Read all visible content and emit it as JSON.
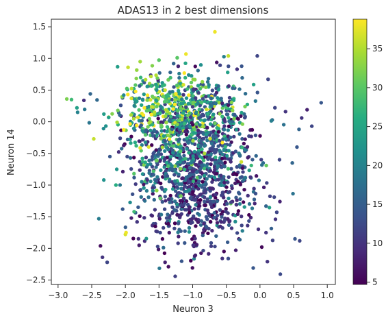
{
  "chart_data": {
    "type": "scatter",
    "title": "ADAS13 in 2 best dimensions",
    "xlabel": "Neuron 3",
    "ylabel": "Neuron 14",
    "xlim": [
      -3.1,
      1.12
    ],
    "ylim": [
      -2.57,
      1.62
    ],
    "xticks": [
      -3.0,
      -2.5,
      -2.0,
      -1.5,
      -1.0,
      -0.5,
      0.0,
      0.5,
      1.0
    ],
    "xtick_labels": [
      "−3.0",
      "−2.5",
      "−2.0",
      "−1.5",
      "−1.0",
      "−0.5",
      "0.0",
      "0.5",
      "1.0"
    ],
    "yticks": [
      1.5,
      1.0,
      0.5,
      0.0,
      -0.5,
      -1.0,
      -1.5,
      -2.0,
      -2.5
    ],
    "ytick_labels": [
      "1.5",
      "1.0",
      "0.5",
      "0.0",
      "−0.5",
      "−1.0",
      "−1.5",
      "−2.0",
      "−2.5"
    ],
    "grid": false,
    "colormap": "viridis",
    "color_range": [
      4.7,
      38.8
    ],
    "colorbar_ticks": [
      35,
      30,
      25,
      20,
      15,
      10,
      5
    ],
    "colorbar_tick_labels": [
      "35",
      "30",
      "25",
      "20",
      "15",
      "10",
      "5"
    ],
    "point_count_estimate": 1700,
    "points": [
      [
        -2.87,
        0.36,
        32
      ],
      [
        -2.8,
        0.35,
        28
      ],
      [
        -2.72,
        0.22,
        24
      ],
      [
        -2.71,
        0.15,
        20
      ],
      [
        -2.52,
        0.44,
        16
      ],
      [
        -2.47,
        -0.27,
        36
      ],
      [
        -2.37,
        -1.96,
        6
      ],
      [
        -2.34,
        -2.14,
        10
      ],
      [
        -2.27,
        -2.22,
        12
      ],
      [
        -2.23,
        -0.55,
        14
      ],
      [
        -2.0,
        -1.78,
        37
      ],
      [
        -1.99,
        -1.75,
        38
      ],
      [
        -1.91,
        0.37,
        37
      ],
      [
        -1.85,
        0.58,
        30
      ],
      [
        -1.96,
        0.86,
        36
      ],
      [
        -1.78,
        0.95,
        34
      ],
      [
        -1.1,
        1.07,
        38
      ],
      [
        -1.23,
        1.01,
        30
      ],
      [
        -0.67,
        1.42,
        38
      ],
      [
        -0.47,
        1.04,
        36
      ],
      [
        -0.04,
        1.04,
        12
      ],
      [
        -0.34,
        0.83,
        10
      ],
      [
        0.12,
        0.67,
        12
      ],
      [
        0.38,
        0.16,
        10
      ],
      [
        0.58,
        -0.12,
        16
      ],
      [
        0.62,
        0.06,
        10
      ],
      [
        0.7,
        0.19,
        8
      ],
      [
        0.91,
        0.3,
        14
      ],
      [
        0.77,
        -0.07,
        12
      ],
      [
        0.55,
        -0.4,
        14
      ],
      [
        0.48,
        -0.65,
        16
      ],
      [
        0.29,
        -0.6,
        12
      ],
      [
        0.52,
        -1.85,
        14
      ],
      [
        0.59,
        -1.88,
        12
      ],
      [
        0.11,
        -2.21,
        10
      ],
      [
        -0.1,
        -2.31,
        14
      ],
      [
        -0.36,
        -2.03,
        8
      ],
      [
        -0.56,
        -2.16,
        10
      ],
      [
        -1.36,
        -2.29,
        6
      ],
      [
        -1.41,
        -2.22,
        8
      ],
      [
        -1.52,
        -1.97,
        12
      ],
      [
        -0.96,
        -2.11,
        8
      ],
      [
        0.25,
        -1.43,
        12
      ],
      [
        0.23,
        -1.54,
        10
      ],
      [
        -2.04,
        -1.38,
        14
      ],
      [
        -1.87,
        -1.42,
        28
      ],
      [
        -2.14,
        -1.0,
        26
      ],
      [
        -2.32,
        -0.92,
        22
      ]
    ],
    "clusters": [
      {
        "center": [
          -1.0,
          -0.75
        ],
        "spread": [
          0.42,
          0.52
        ],
        "n": 700,
        "color_mean": 12,
        "color_sd": 5
      },
      {
        "center": [
          -1.25,
          -0.2
        ],
        "spread": [
          0.45,
          0.45
        ],
        "n": 420,
        "color_mean": 20,
        "color_sd": 7
      },
      {
        "center": [
          -1.35,
          0.25
        ],
        "spread": [
          0.38,
          0.28
        ],
        "n": 260,
        "color_mean": 30,
        "color_sd": 6
      },
      {
        "center": [
          -0.85,
          -1.35
        ],
        "spread": [
          0.45,
          0.35
        ],
        "n": 220,
        "color_mean": 11,
        "color_sd": 4
      },
      {
        "center": [
          -0.6,
          0.1
        ],
        "spread": [
          0.3,
          0.35
        ],
        "n": 150,
        "color_mean": 18,
        "color_sd": 8
      }
    ]
  }
}
